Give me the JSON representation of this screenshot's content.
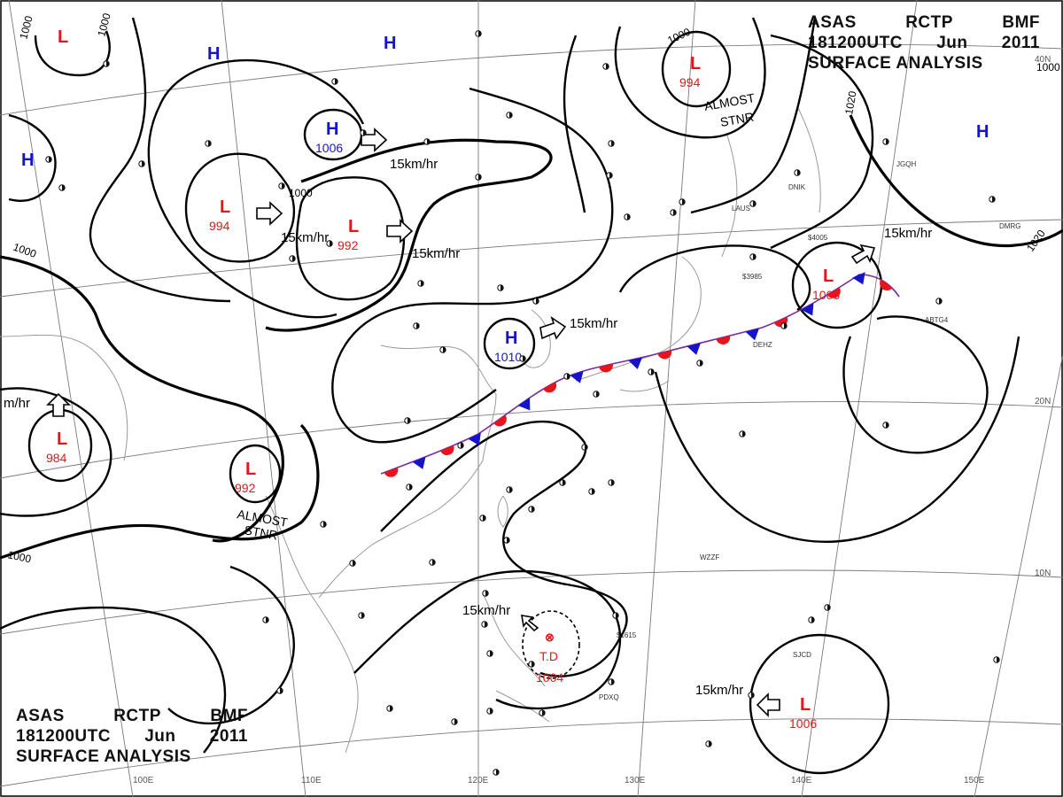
{
  "header": {
    "line1": [
      "ASAS",
      "RCTP",
      "BMF"
    ],
    "line2": [
      "181200UTC",
      "Jun",
      "2011"
    ],
    "line3": "SURFACE ANALYSIS"
  },
  "colors": {
    "low": "#e8141c",
    "high": "#1414cc",
    "isobar": "#000000",
    "warm_front": "#e8141c",
    "cold_front": "#1414cc",
    "grid": "#7a7a7a",
    "coast": "#9a9a9a"
  },
  "pressure_centers": [
    {
      "type": "L",
      "letter": "L",
      "value": "994",
      "name": "low-mongolia"
    },
    {
      "type": "L",
      "letter": "L",
      "value": "992",
      "name": "low-northchina"
    },
    {
      "type": "L",
      "letter": "L",
      "value": "994",
      "name": "low-okhotsk"
    },
    {
      "type": "L",
      "letter": "L",
      "value": "1006",
      "name": "low-pacific-front"
    },
    {
      "type": "L",
      "letter": "L",
      "value": "984",
      "name": "low-india"
    },
    {
      "type": "L",
      "letter": "L",
      "value": "992",
      "name": "low-yunnan"
    },
    {
      "type": "L",
      "letter": "L",
      "value": "1006",
      "name": "low-marianas"
    },
    {
      "type": "L",
      "letter": "L",
      "value": "",
      "name": "low-corner"
    },
    {
      "type": "H",
      "letter": "H",
      "value": "1006",
      "name": "high-mongolia"
    },
    {
      "type": "H",
      "letter": "H",
      "value": "1010",
      "name": "high-yellowsea"
    },
    {
      "type": "H",
      "letter": "H",
      "value": "",
      "name": "high-west"
    },
    {
      "type": "H",
      "letter": "H",
      "value": "",
      "name": "high-north"
    },
    {
      "type": "H",
      "letter": "H",
      "value": "",
      "name": "high-siberia"
    },
    {
      "type": "H",
      "letter": "H",
      "value": "",
      "name": "high-pacific"
    }
  ],
  "tropical_depression": {
    "label": "T.D",
    "value": "1004"
  },
  "movement_labels": [
    "15km/hr",
    "15km/hr",
    "15km/hr",
    "15km/hr",
    "15km/hr",
    "15km/hr",
    "15km/hr",
    "m/hr"
  ],
  "isobar_labels": [
    "1000",
    "1000",
    "1000",
    "1000",
    "1000",
    "1000",
    "1020",
    "1020",
    "1000"
  ],
  "annotations": [
    {
      "line1": "ALMOST",
      "line2": "STNR"
    },
    {
      "line1": "ALMOST",
      "line2": "STNR"
    }
  ],
  "longitude_labels": [
    "100E",
    "110E",
    "120E",
    "130E",
    "140E",
    "150E"
  ],
  "latitude_labels": [
    "20N",
    "10N",
    "40N"
  ],
  "station_ids": [
    "JGQH",
    "DMRG",
    "DNIK",
    "LAUS",
    "$4005",
    "$3985",
    "ABTG4",
    "DEHZ",
    "WZZF",
    "SJCD",
    "PDXQ",
    "$1615"
  ]
}
